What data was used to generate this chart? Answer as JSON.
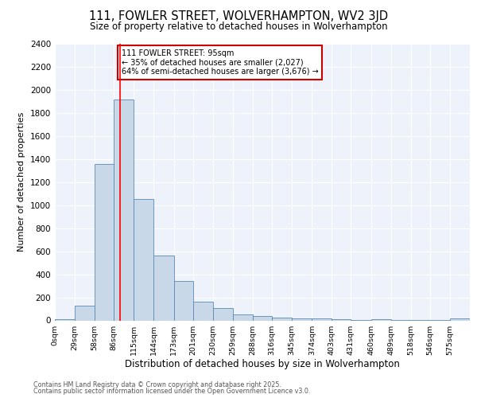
{
  "title1": "111, FOWLER STREET, WOLVERHAMPTON, WV2 3JD",
  "title2": "Size of property relative to detached houses in Wolverhampton",
  "xlabel": "Distribution of detached houses by size in Wolverhampton",
  "ylabel": "Number of detached properties",
  "bin_labels": [
    "0sqm",
    "29sqm",
    "58sqm",
    "86sqm",
    "115sqm",
    "144sqm",
    "173sqm",
    "201sqm",
    "230sqm",
    "259sqm",
    "288sqm",
    "316sqm",
    "345sqm",
    "374sqm",
    "403sqm",
    "431sqm",
    "460sqm",
    "489sqm",
    "518sqm",
    "546sqm",
    "575sqm"
  ],
  "bin_edges": [
    0,
    29,
    58,
    86,
    115,
    144,
    173,
    201,
    230,
    259,
    288,
    316,
    345,
    374,
    403,
    431,
    460,
    489,
    518,
    546,
    575,
    604
  ],
  "bar_heights": [
    10,
    130,
    1360,
    1920,
    1050,
    560,
    340,
    165,
    105,
    55,
    35,
    25,
    20,
    15,
    10,
    5,
    10,
    5,
    5,
    5,
    15
  ],
  "bar_color": "#c8d8e8",
  "bar_edge_color": "#5a8ab5",
  "red_line_x": 95,
  "annotation_title": "111 FOWLER STREET: 95sqm",
  "annotation_line1": "← 35% of detached houses are smaller (2,027)",
  "annotation_line2": "64% of semi-detached houses are larger (3,676) →",
  "annotation_box_color": "#ffffff",
  "annotation_box_edge": "#cc0000",
  "footer1": "Contains HM Land Registry data © Crown copyright and database right 2025.",
  "footer2": "Contains public sector information licensed under the Open Government Licence v3.0.",
  "background_color": "#eef2fa",
  "ylim": [
    0,
    2400
  ],
  "yticks": [
    0,
    200,
    400,
    600,
    800,
    1000,
    1200,
    1400,
    1600,
    1800,
    2000,
    2200,
    2400
  ]
}
